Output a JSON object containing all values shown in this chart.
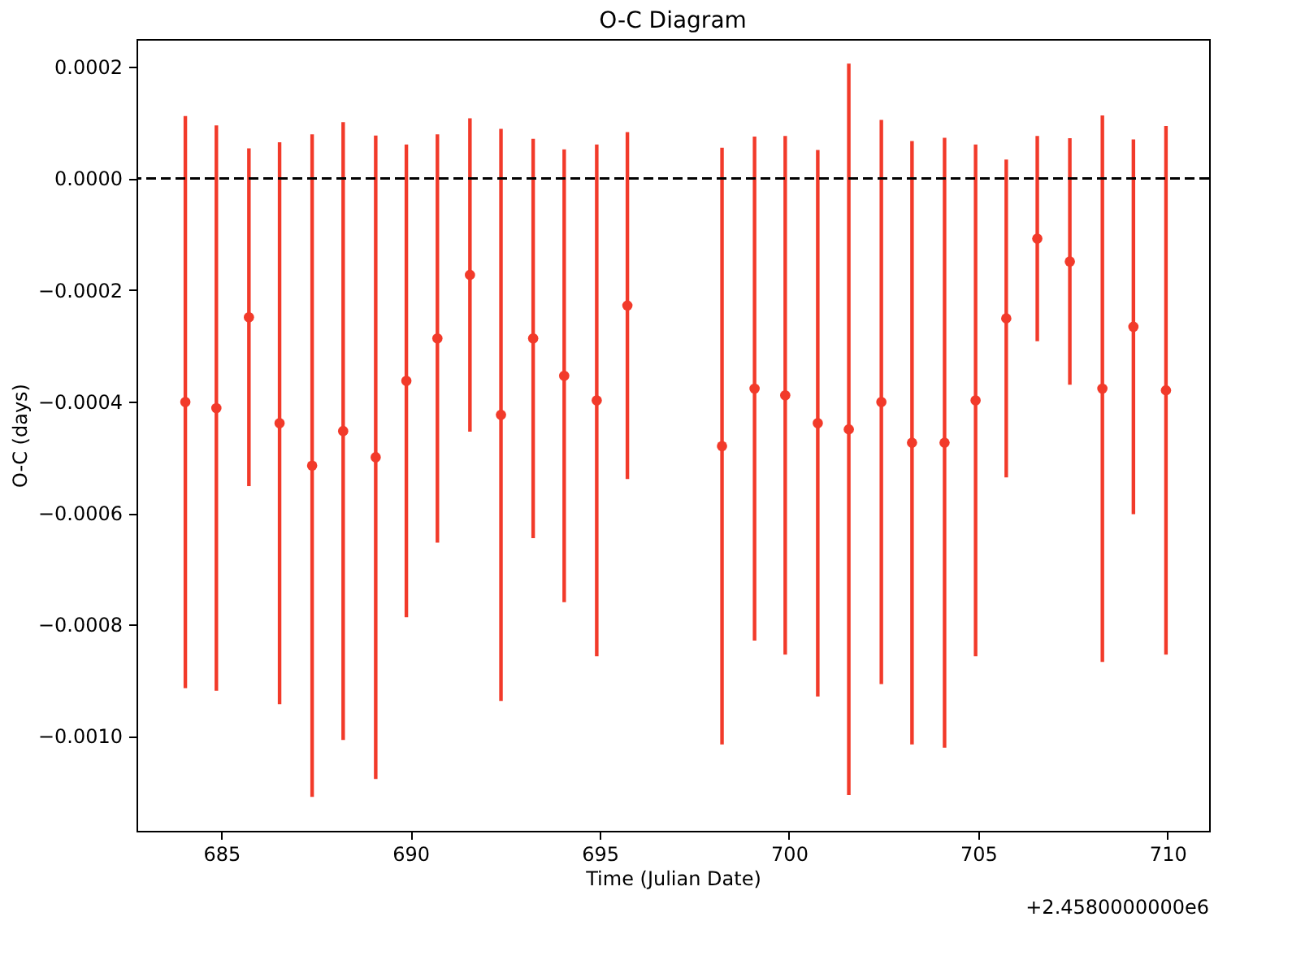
{
  "chart_data": {
    "type": "scatter",
    "title": "O-C Diagram",
    "xlabel": "Time (Julian Date)",
    "ylabel": "O-C (days)",
    "annotations": [
      "+2.4580000000e6"
    ],
    "x": [
      684.05,
      684.87,
      685.73,
      686.54,
      687.4,
      688.22,
      689.08,
      689.89,
      690.71,
      691.57,
      692.39,
      693.24,
      694.06,
      694.92,
      695.73,
      698.23,
      699.09,
      699.9,
      700.76,
      701.58,
      702.44,
      703.25,
      704.11,
      704.93,
      705.74,
      706.56,
      707.42,
      708.28,
      709.1,
      709.96
    ],
    "values": [
      -0.000401,
      -0.000412,
      -0.000249,
      -0.000439,
      -0.000515,
      -0.000453,
      -0.0005,
      -0.000363,
      -0.000287,
      -0.000173,
      -0.000424,
      -0.000287,
      -0.000354,
      -0.000398,
      -0.000228,
      -0.00048,
      -0.000377,
      -0.000389,
      -0.000439,
      -0.00045,
      -0.000401,
      -0.000474,
      -0.000474,
      -0.000398,
      -0.000251,
      -0.000108,
      -0.000149,
      -0.000377,
      -0.000266,
      -0.00038
    ],
    "errors": [
      0.000513,
      0.000507,
      0.000303,
      0.000504,
      0.000594,
      0.000554,
      0.000577,
      0.000424,
      0.000366,
      0.000281,
      0.000513,
      0.000358,
      0.000406,
      0.000459,
      0.000311,
      0.000535,
      0.000452,
      0.000465,
      0.00049,
      0.000656,
      0.000506,
      0.000541,
      0.000547,
      0.000459,
      0.000285,
      0.000184,
      0.000221,
      0.00049,
      0.000336,
      0.000474
    ],
    "color": "#f23a2a",
    "marker": "circle",
    "xlim": [
      682.76,
      711.1
    ],
    "xticks": [
      685,
      690,
      695,
      700,
      705,
      710
    ],
    "ylim": [
      -0.00117,
      0.00025
    ],
    "yticks": [
      {
        "value": -0.001,
        "label": "−0.0010"
      },
      {
        "value": -0.0008,
        "label": "−0.0008"
      },
      {
        "value": -0.0006,
        "label": "−0.0006"
      },
      {
        "value": -0.0004,
        "label": "−0.0004"
      },
      {
        "value": -0.0002,
        "label": "−0.0002"
      },
      {
        "value": 0,
        "label": "0.0000"
      },
      {
        "value": 0.0002,
        "label": "0.0002"
      }
    ],
    "ref_lines": [
      {
        "axis": "y",
        "value": 0,
        "color": "#000000",
        "line_style": "dashed"
      }
    ],
    "grid": false
  }
}
